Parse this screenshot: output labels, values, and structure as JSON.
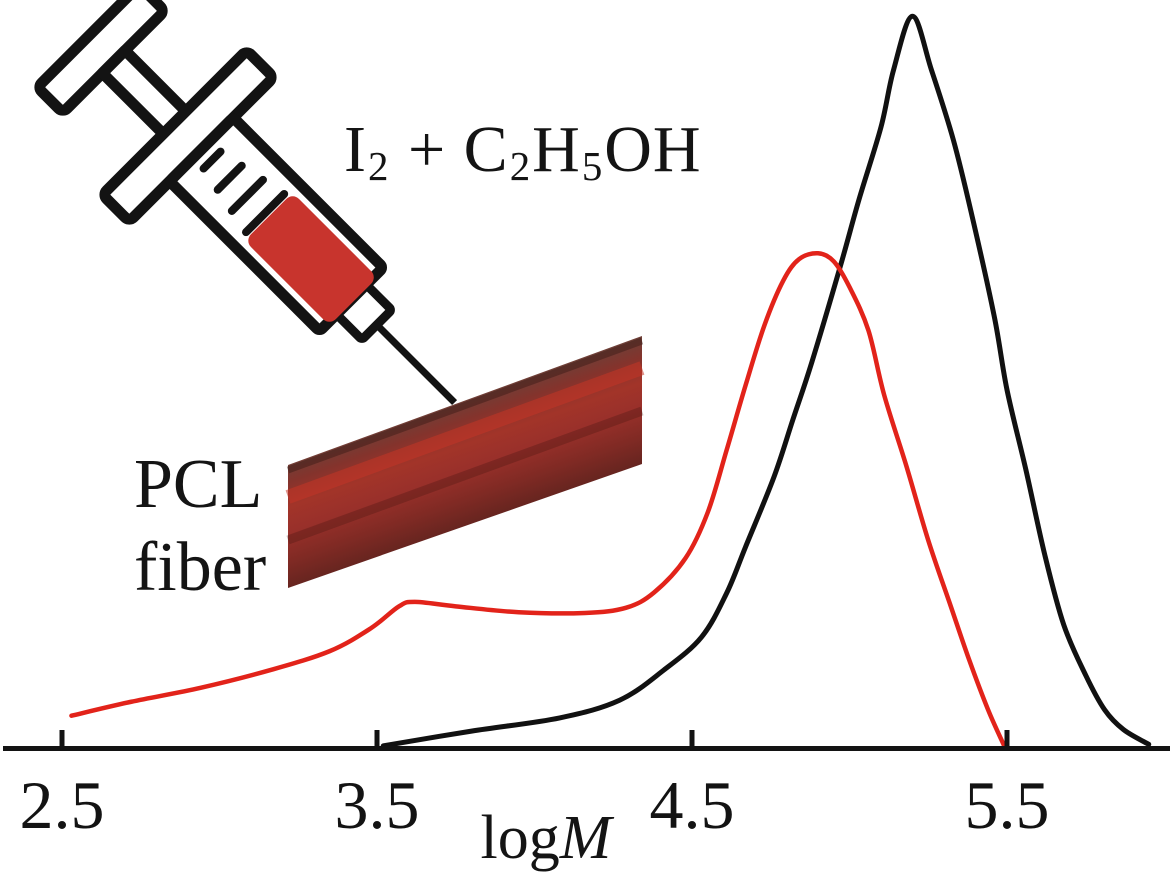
{
  "figure": {
    "inset": {
      "formula": {
        "text_plain": "I2 + C2H5OH",
        "segments": [
          {
            "text": "I"
          },
          {
            "text": "2",
            "subscript": true
          },
          {
            "text": " + C"
          },
          {
            "text": "2",
            "subscript": true
          },
          {
            "text": "H"
          },
          {
            "text": "5",
            "subscript": true
          },
          {
            "text": "OH"
          }
        ]
      },
      "fiber_label_lines": [
        "PCL",
        "fiber"
      ],
      "syringe": {
        "liquid_color": "#c8342d",
        "outline_color": "#131313"
      },
      "fiber_gradient": [
        {
          "o": 0.0,
          "c": "#6d4038"
        },
        {
          "o": 0.16,
          "c": "#84332c"
        },
        {
          "o": 0.34,
          "c": "#a23429"
        },
        {
          "o": 0.52,
          "c": "#99302a"
        },
        {
          "o": 0.74,
          "c": "#802a24"
        },
        {
          "o": 1.0,
          "c": "#5e231e"
        }
      ]
    }
  },
  "chart_data": {
    "type": "line",
    "title": "",
    "xlabel": {
      "prefix": "log",
      "variable": "M"
    },
    "ylabel": "",
    "xlim": [
      2.31,
      6.02
    ],
    "ylim": [
      0,
      1.05
    ],
    "grid": false,
    "legend": "none",
    "x_ticks": [
      2.5,
      3.5,
      4.5,
      5.5
    ],
    "x_tick_labels": [
      "2.5",
      "3.5",
      "4.5",
      "5.5"
    ],
    "axis_color": "#131313",
    "series": [
      {
        "name": "black-curve",
        "color": "#111111",
        "width": 5,
        "points": [
          [
            3.52,
            0.003
          ],
          [
            3.8,
            0.023
          ],
          [
            4.08,
            0.041
          ],
          [
            4.27,
            0.065
          ],
          [
            4.41,
            0.106
          ],
          [
            4.53,
            0.151
          ],
          [
            4.61,
            0.211
          ],
          [
            4.67,
            0.274
          ],
          [
            4.76,
            0.369
          ],
          [
            4.82,
            0.447
          ],
          [
            4.88,
            0.525
          ],
          [
            4.97,
            0.655
          ],
          [
            5.03,
            0.747
          ],
          [
            5.1,
            0.846
          ],
          [
            5.14,
            0.924
          ],
          [
            5.2,
            0.997
          ],
          [
            5.26,
            0.924
          ],
          [
            5.33,
            0.828
          ],
          [
            5.39,
            0.723
          ],
          [
            5.46,
            0.587
          ],
          [
            5.5,
            0.488
          ],
          [
            5.56,
            0.379
          ],
          [
            5.62,
            0.263
          ],
          [
            5.68,
            0.168
          ],
          [
            5.75,
            0.099
          ],
          [
            5.81,
            0.052
          ],
          [
            5.87,
            0.025
          ],
          [
            5.95,
            0.005
          ]
        ]
      },
      {
        "name": "red-curve",
        "color": "#e2231a",
        "width": 4.5,
        "points": [
          [
            2.53,
            0.044
          ],
          [
            2.72,
            0.063
          ],
          [
            2.94,
            0.082
          ],
          [
            3.16,
            0.106
          ],
          [
            3.35,
            0.132
          ],
          [
            3.48,
            0.163
          ],
          [
            3.57,
            0.193
          ],
          [
            3.62,
            0.199
          ],
          [
            3.75,
            0.193
          ],
          [
            3.95,
            0.185
          ],
          [
            4.16,
            0.184
          ],
          [
            4.29,
            0.191
          ],
          [
            4.38,
            0.212
          ],
          [
            4.48,
            0.259
          ],
          [
            4.55,
            0.321
          ],
          [
            4.61,
            0.406
          ],
          [
            4.67,
            0.494
          ],
          [
            4.73,
            0.576
          ],
          [
            4.79,
            0.637
          ],
          [
            4.84,
            0.666
          ],
          [
            4.9,
            0.674
          ],
          [
            4.95,
            0.663
          ],
          [
            5.0,
            0.628
          ],
          [
            5.06,
            0.569
          ],
          [
            5.11,
            0.481
          ],
          [
            5.18,
            0.385
          ],
          [
            5.25,
            0.283
          ],
          [
            5.32,
            0.195
          ],
          [
            5.38,
            0.12
          ],
          [
            5.44,
            0.052
          ],
          [
            5.49,
            0.004
          ]
        ]
      }
    ]
  }
}
